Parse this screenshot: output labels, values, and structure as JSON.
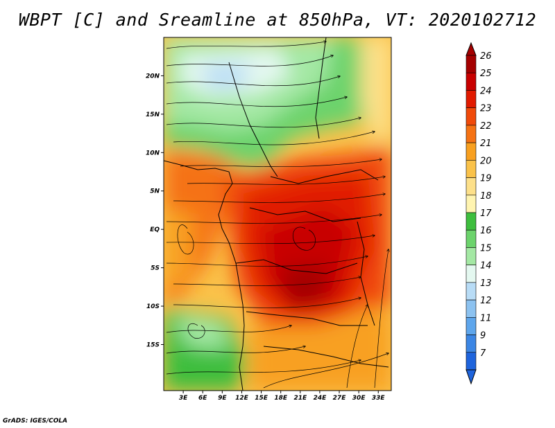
{
  "title": "WBPT [C] and Sreamline at 850hPa, VT: 2020102712",
  "credit": "GrADS: IGES/COLA",
  "map": {
    "lon_range": [
      0,
      35
    ],
    "lat_range": [
      -21,
      25
    ],
    "lat_ticks": [
      {
        "value": 20,
        "label": "20N"
      },
      {
        "value": 15,
        "label": "15N"
      },
      {
        "value": 10,
        "label": "10N"
      },
      {
        "value": 5,
        "label": "5N"
      },
      {
        "value": 0,
        "label": "EQ"
      },
      {
        "value": -5,
        "label": "5S"
      },
      {
        "value": -10,
        "label": "10S"
      },
      {
        "value": -15,
        "label": "15S"
      }
    ],
    "lon_ticks": [
      {
        "value": 3,
        "label": "3E"
      },
      {
        "value": 6,
        "label": "6E"
      },
      {
        "value": 9,
        "label": "9E"
      },
      {
        "value": 12,
        "label": "12E"
      },
      {
        "value": 15,
        "label": "15E"
      },
      {
        "value": 18,
        "label": "18E"
      },
      {
        "value": 21,
        "label": "21E"
      },
      {
        "value": 24,
        "label": "24E"
      },
      {
        "value": 27,
        "label": "27E"
      },
      {
        "value": 30,
        "label": "30E"
      },
      {
        "value": 33,
        "label": "33E"
      }
    ]
  },
  "colorbar": {
    "levels": [
      {
        "label": "26",
        "color": "#a50000"
      },
      {
        "label": "25",
        "color": "#c80000"
      },
      {
        "label": "24",
        "color": "#e11a00"
      },
      {
        "label": "23",
        "color": "#f04a0a"
      },
      {
        "label": "22",
        "color": "#f57214"
      },
      {
        "label": "21",
        "color": "#f8a020"
      },
      {
        "label": "20",
        "color": "#fac24a"
      },
      {
        "label": "19",
        "color": "#fde08a"
      },
      {
        "label": "18",
        "color": "#fff4b0"
      },
      {
        "label": "17",
        "color": "#3ebe3e"
      },
      {
        "label": "16",
        "color": "#6cd36c"
      },
      {
        "label": "15",
        "color": "#a4e8a4"
      },
      {
        "label": "14",
        "color": "#e4f8f0"
      },
      {
        "label": "13",
        "color": "#b8dcf6"
      },
      {
        "label": "12",
        "color": "#8cc2f0"
      },
      {
        "label": "11",
        "color": "#5ea6ec"
      },
      {
        "label": "9",
        "color": "#3c86e4"
      },
      {
        "label": "7",
        "color": "#1e64dc"
      }
    ],
    "over_color": "#a50000",
    "under_color": "#1e64dc"
  }
}
